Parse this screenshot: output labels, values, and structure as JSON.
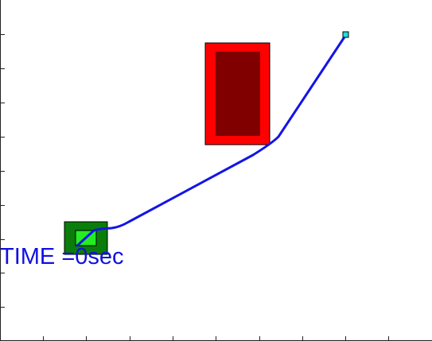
{
  "time_display": {
    "prefix": "TIME =",
    "value": "0",
    "unit": "sec"
  },
  "colors": {
    "background": "#ffffff",
    "axis": "#222222",
    "start_outer": "#0a7d0a",
    "start_inner": "#22ee22",
    "obstacle_outer": "#ff0000",
    "obstacle_inner": "#800000",
    "path": "#1414e6",
    "goal": "#22dddd",
    "label": "#1010e0"
  },
  "icons": {
    "start": "green-square-icon",
    "goal": "cyan-square-icon",
    "obstacle": "red-rectangle-icon"
  }
}
